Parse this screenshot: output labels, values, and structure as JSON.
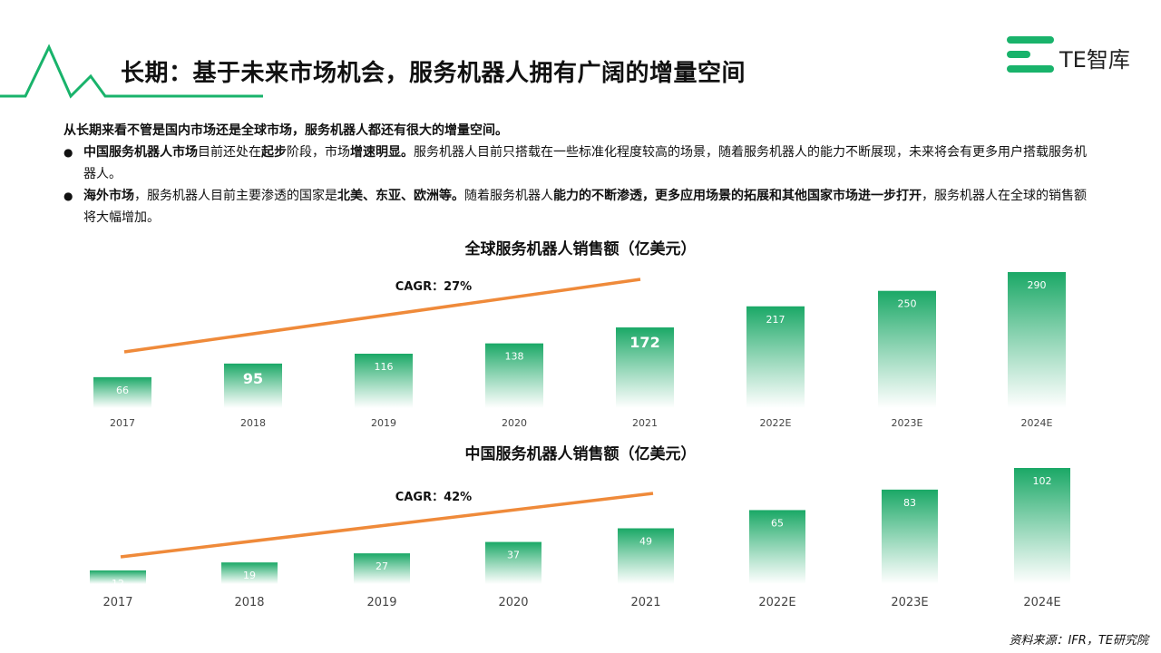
{
  "header": {
    "title": "长期：基于未来市场机会，服务机器人拥有广阔的增量空间",
    "logo_text": "TE智库"
  },
  "colors": {
    "brand_green": "#19b36b",
    "bar_top": "#1aa866",
    "bar_bottom": "#ffffff",
    "trend": "#ef8a3a"
  },
  "body": {
    "lead": "从长期来看不管是国内市场还是全球市场，服务机器人都还有很大的增量空间。",
    "bullet1": {
      "p1": "中国服务机器人市场",
      "p2": "目前还处在",
      "p3": "起步",
      "p4": "阶段，市场",
      "p5": "增速明显。",
      "p6": "服务机器人目前只搭载在一些标准化程度较高的场景，随着服务机器人的能力不断展现，未来将会有更多用户搭载服务机器人。"
    },
    "bullet2": {
      "p1": "海外市场",
      "p2": "，服务机器人目前主要渗透的国家是",
      "p3": "北美、东亚、欧洲等。",
      "p4": "随着服务机器人",
      "p5": "能力的不断渗透，更多应用场景的拓展和其他国家市场进一步打开",
      "p6": "，服务机器人在全球的销售额将大幅增加。"
    }
  },
  "source": "资料来源：IFR，TE研究院",
  "chart_data": [
    {
      "type": "bar",
      "title": "全球服务机器人销售额（亿美元）",
      "categories": [
        "2017",
        "2018",
        "2019",
        "2020",
        "2021",
        "2022E",
        "2023E",
        "2024E"
      ],
      "values": [
        66,
        95,
        116,
        138,
        172,
        217,
        250,
        290
      ],
      "highlight": [
        "2018",
        "2021"
      ],
      "annotation": "CAGR：27%",
      "trend_line": true
    },
    {
      "type": "bar",
      "title": "中国服务机器人销售额（亿美元）",
      "categories": [
        "2017",
        "2018",
        "2019",
        "2020",
        "2021",
        "2022E",
        "2023E",
        "2024E"
      ],
      "values": [
        12,
        19,
        27,
        37,
        49,
        65,
        83,
        102
      ],
      "annotation": "CAGR：42%",
      "trend_line": true
    }
  ]
}
